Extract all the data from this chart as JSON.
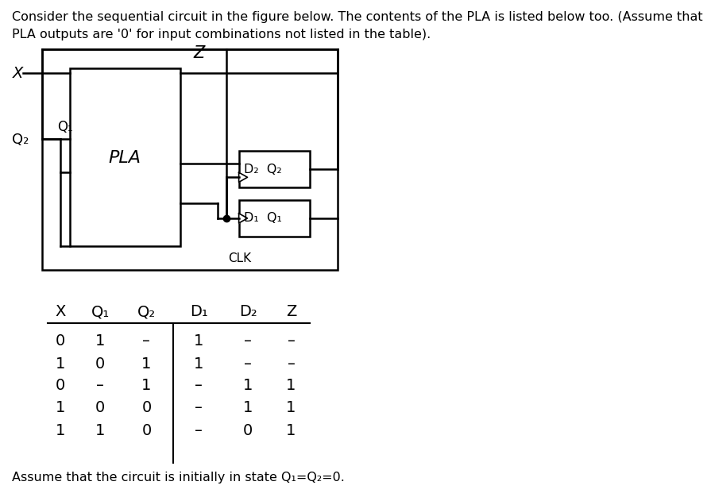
{
  "title_text": "Consider the sequential circuit in the figure below. The contents of the PLA is listed below too. (Assume that\nPLA outputs are '0' for input combinations not listed in the table).",
  "footer_text": "Assume that the circuit is initially in state Q₁=Q₂=0.",
  "table_headers": [
    "X",
    "Q₁",
    "Q₂",
    "D₁",
    "D₂",
    "Z"
  ],
  "table_data": [
    [
      "0",
      "1",
      "–",
      "1",
      "–",
      "–"
    ],
    [
      "1",
      "0",
      "1",
      "1",
      "–",
      "–"
    ],
    [
      "0",
      "–",
      "1",
      "–",
      "1",
      "1"
    ],
    [
      "1",
      "0",
      "0",
      "–",
      "1",
      "1"
    ],
    [
      "1",
      "1",
      "0",
      "–",
      "0",
      "1"
    ]
  ],
  "bg_color": "#ffffff",
  "text_color": "#000000",
  "circuit_lw": 1.8,
  "pla_label": "PLA",
  "z_label": "Z",
  "x_label": "X",
  "q1_label": "Q₁",
  "q2_label": "Q₂",
  "clk_label": "CLK",
  "ff2_label": "D₂  Q₂",
  "ff1_label": "D₁  Q₁"
}
